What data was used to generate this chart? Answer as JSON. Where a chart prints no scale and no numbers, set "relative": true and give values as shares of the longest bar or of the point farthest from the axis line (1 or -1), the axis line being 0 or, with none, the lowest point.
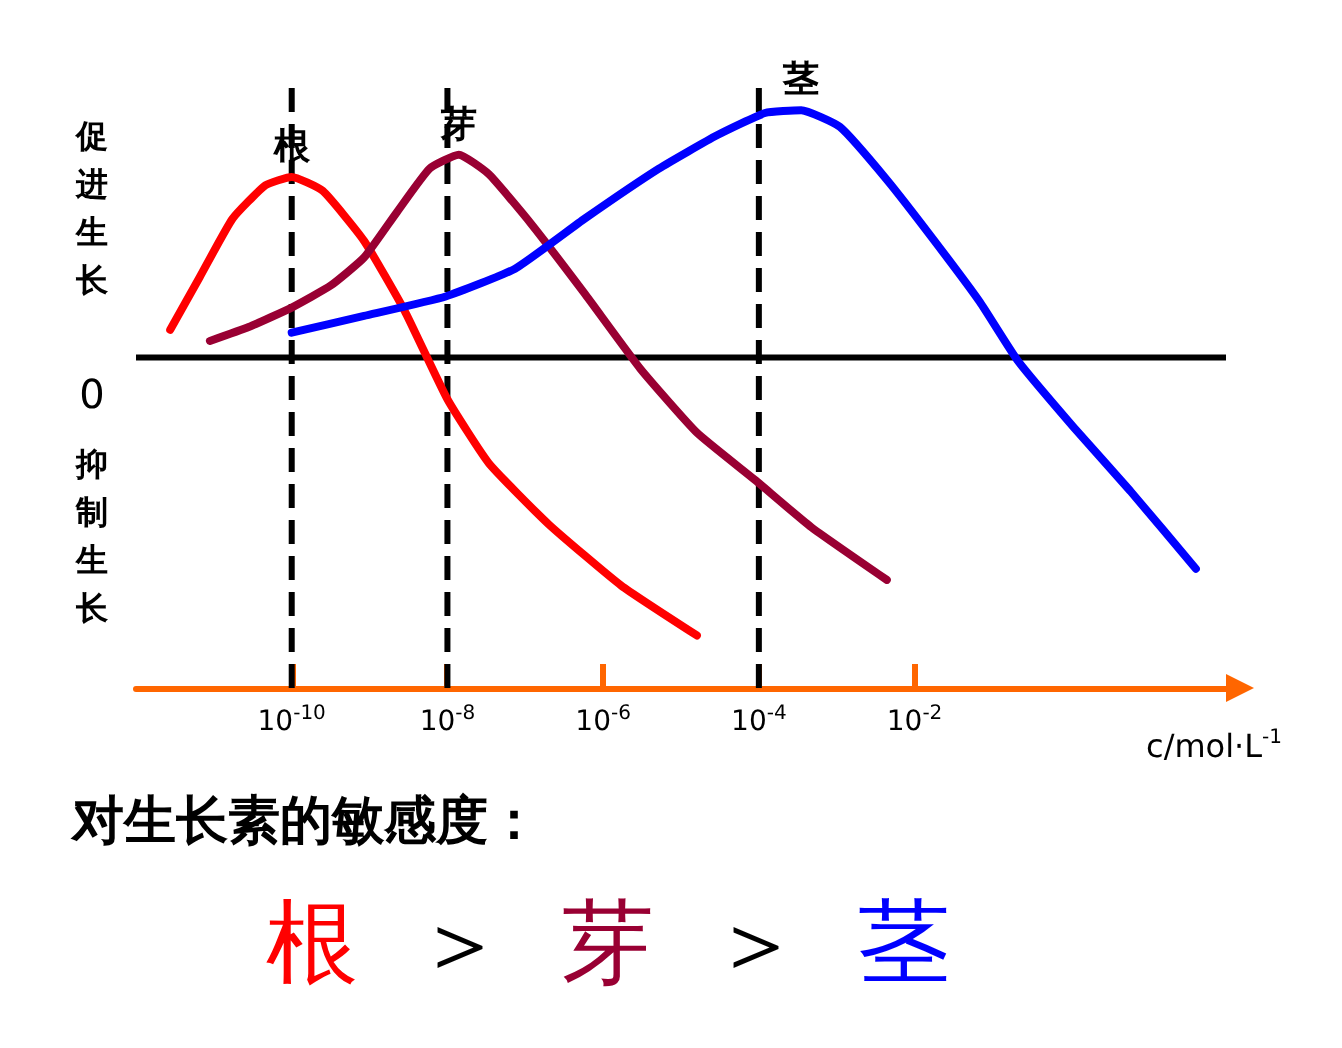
{
  "chart_data": {
    "type": "line",
    "relative": true,
    "xlabel": "c/mol·L$^{-1}$",
    "log": "x",
    "xlim": [
      1e-12,
      100
    ],
    "xticks": [
      {
        "value": 1e-10,
        "label": "10$^{-10}$"
      },
      {
        "value": 1e-08,
        "label": "10$^{-8}$"
      },
      {
        "value": 1e-06,
        "label": "10$^{-6}$"
      },
      {
        "value": 0.0001,
        "label": "10$^{-4}$"
      },
      {
        "value": 0.01,
        "label": "10$^{-2}$"
      }
    ],
    "grid": false,
    "legend": false,
    "marker": "none",
    "line_style": "solid",
    "series": [
      {
        "name": "根",
        "color": "#ff0000",
        "x": [
          2.75e-12,
          6.6e-12,
          1.74e-11,
          4.6e-11,
          1e-10,
          2.5e-10,
          8.5e-10,
          2.8e-09,
          1e-08,
          3.4e-08,
          2e-07,
          1.7e-06,
          1.6e-05
        ],
        "values": [
          0.1,
          0.29,
          0.5,
          0.62,
          0.65,
          0.6,
          0.42,
          0.17,
          -0.15,
          -0.38,
          -0.6,
          -0.82,
          -1.0
        ]
      },
      {
        "name": "芽",
        "color": "#990033",
        "x": [
          8.9e-12,
          2.8e-11,
          1e-10,
          3.2e-10,
          8.5e-10,
          2.2e-09,
          5.9e-09,
          1.4e-08,
          3.4e-08,
          1.2e-07,
          5.8e-07,
          3e-06,
          1.6e-05,
          8.9e-05,
          0.00047,
          0.0044
        ],
        "values": [
          0.06,
          0.11,
          0.18,
          0.26,
          0.36,
          0.52,
          0.68,
          0.73,
          0.66,
          0.48,
          0.23,
          -0.04,
          -0.27,
          -0.44,
          -0.61,
          -0.8
        ]
      },
      {
        "name": "茎",
        "color": "#0000ff",
        "x": [
          1e-10,
          8.5e-10,
          9.5e-09,
          7.4e-08,
          5.8e-07,
          5.2e-06,
          2.9e-05,
          0.00012,
          0.00035,
          0.0011,
          0.0044,
          0.018,
          0.069,
          0.21,
          1.1,
          5.9,
          41
        ],
        "values": [
          0.09,
          0.15,
          0.22,
          0.32,
          0.5,
          0.68,
          0.8,
          0.88,
          0.89,
          0.83,
          0.64,
          0.42,
          0.2,
          -0.01,
          -0.25,
          -0.48,
          -0.76
        ]
      }
    ],
    "ref_lines": [
      {
        "axis": "y",
        "value": 0,
        "label": "0",
        "color": "#000000",
        "line_style": "solid"
      },
      {
        "axis": "x",
        "value": 1e-10,
        "color": "#000000",
        "line_style": "dashed"
      },
      {
        "axis": "x",
        "value": 1e-08,
        "color": "#000000",
        "line_style": "dashed"
      },
      {
        "axis": "x",
        "value": 0.0001,
        "color": "#000000",
        "line_style": "dashed"
      }
    ],
    "annotations": [
      "促进生长",
      "抑制生长",
      "对生长素的敏感度：",
      "根＞芽＞茎"
    ]
  }
}
